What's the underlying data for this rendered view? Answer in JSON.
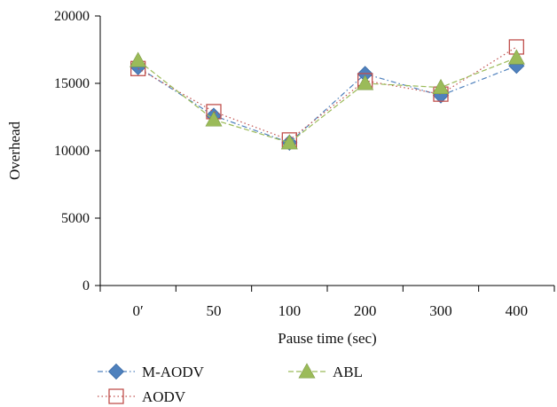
{
  "chart_data": {
    "type": "line",
    "categories": [
      "0′",
      "50",
      "100",
      "200",
      "300",
      "400"
    ],
    "xlabel": "Pause time (sec)",
    "ylabel": "Overhead",
    "ylim": [
      0,
      20000
    ],
    "yticks": [
      0,
      5000,
      10000,
      15000,
      20000
    ],
    "grid": false,
    "legend_position": "bottom",
    "series": [
      {
        "name": "M-AODV",
        "values": [
          16200,
          12600,
          10600,
          15700,
          14100,
          16300
        ],
        "color": "#4f81bd",
        "marker": "diamond",
        "dash": "dash-dot"
      },
      {
        "name": "AODV",
        "values": [
          16100,
          12900,
          10800,
          15200,
          14200,
          17700
        ],
        "color": "#c0504d",
        "marker": "square-open",
        "dash": "dotted"
      },
      {
        "name": "ABL",
        "values": [
          16700,
          12300,
          10600,
          15000,
          14700,
          16900
        ],
        "color": "#9bbb59",
        "marker": "triangle",
        "dash": "dashed"
      }
    ]
  }
}
